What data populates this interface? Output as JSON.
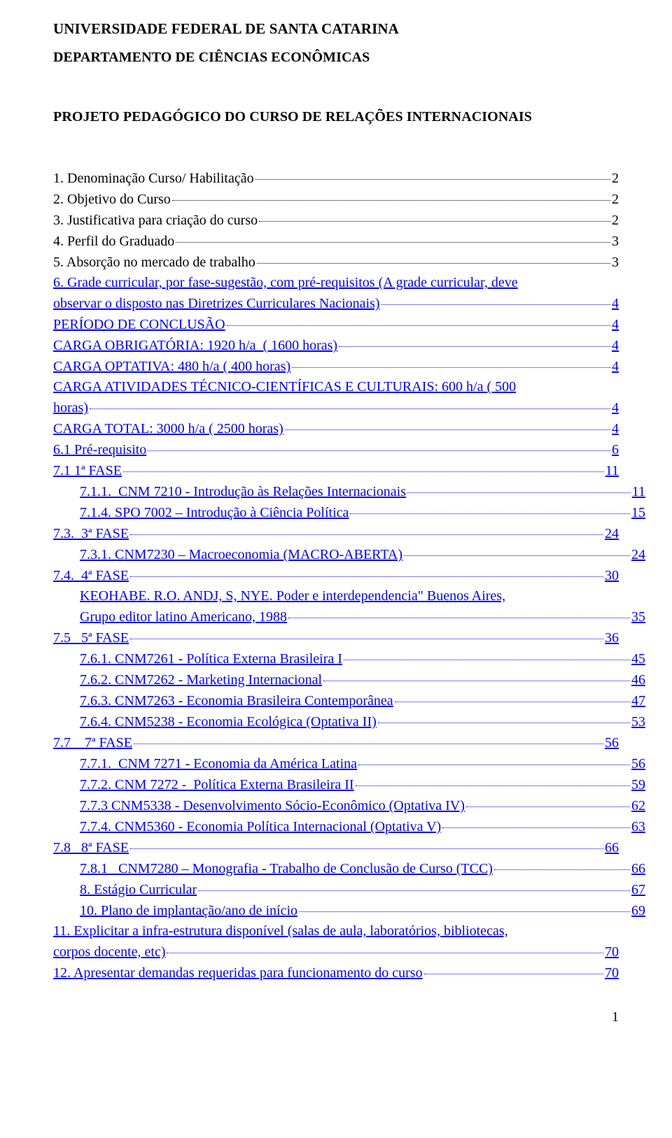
{
  "header": {
    "university": "UNIVERSIDADE FEDERAL DE SANTA CATARINA",
    "department": "DEPARTAMENTO DE CIÊNCIAS ECONÔMICAS",
    "project": "PROJETO PEDAGÓGICO DO CURSO DE RELAÇÕES INTERNACIONAIS"
  },
  "colors": {
    "link": "#0000ff",
    "text": "#000000",
    "background": "#ffffff"
  },
  "typography": {
    "family": "Times New Roman",
    "body_size_pt": 15,
    "heading_weight": "bold"
  },
  "toc": [
    {
      "indent": 0,
      "label": "1. Denominação Curso/ Habilitação",
      "page": "2",
      "style": "plain"
    },
    {
      "indent": 0,
      "label": "2. Objetivo do Curso",
      "page": "2",
      "style": "plain"
    },
    {
      "indent": 0,
      "label": "3. Justificativa para criação do curso",
      "page": "2",
      "style": "plain"
    },
    {
      "indent": 0,
      "label": "4. Perfil do Graduado",
      "page": "3",
      "style": "plain"
    },
    {
      "indent": 0,
      "label": "5. Absorção no mercado de trabalho",
      "page": "3",
      "style": "plain"
    },
    {
      "indent": 0,
      "label_line1": "6. Grade curricular, por fase-sugestão, com pré-requisitos (A grade curricular, deve",
      "label_line2": "observar o disposto nas Diretrizes Curriculares Nacionais)",
      "page": "4",
      "style": "link",
      "multiline": true
    },
    {
      "indent": 0,
      "label": "PERÍODO DE CONCLUSÃO",
      "page": "4",
      "style": "link"
    },
    {
      "indent": 0,
      "label": "CARGA OBRIGATÓRIA: 1920 h/a  ( 1600 horas)",
      "page": "4",
      "style": "link"
    },
    {
      "indent": 0,
      "label": "CARGA OPTATIVA: 480 h/a ( 400 horas)",
      "page": "4",
      "style": "link"
    },
    {
      "indent": 0,
      "label_line1": "CARGA ATIVIDADES TÉCNICO-CIENTÍFICAS E CULTURAIS: 600 h/a ( 500",
      "label_line2": "horas)",
      "page": "4",
      "style": "link",
      "multiline": true
    },
    {
      "indent": 0,
      "label": "CARGA TOTAL: 3000 h/a ( 2500 horas)",
      "page": "4",
      "style": "link"
    },
    {
      "indent": 0,
      "label": "6.1 Pré-requisito",
      "page": "6",
      "style": "link"
    },
    {
      "indent": 0,
      "label": "7.1 1ª FASE",
      "page": "11",
      "style": "link"
    },
    {
      "indent": 1,
      "label": "7.1.1.  CNM 7210 - Introdução às Relações Internacionais",
      "page": "11",
      "style": "link"
    },
    {
      "indent": 1,
      "label": "7.1.4. SPO 7002 – Introdução à Ciência Política",
      "page": "15",
      "style": "link"
    },
    {
      "indent": 0,
      "label": "7.3.  3ª FASE",
      "page": "24",
      "style": "link"
    },
    {
      "indent": 1,
      "label": "7.3.1. CNM7230 – Macroeconomia (MACRO-ABERTA)",
      "page": "24",
      "style": "link"
    },
    {
      "indent": 0,
      "label": "7.4.  4ª FASE",
      "page": "30",
      "style": "link"
    },
    {
      "indent": 1,
      "label_line1": "KEOHABE. R.O.  ANDJ, S, NYE.  Poder e interdependencia\" Buenos Aires,",
      "label_line2": "Grupo editor latino Americano, 1988",
      "page": "35",
      "style": "link",
      "multiline": true
    },
    {
      "indent": 0,
      "label": "7.5   5ª FASE",
      "page": "36",
      "style": "link"
    },
    {
      "indent": 1,
      "label": "7.6.1. CNM7261 - Política Externa Brasileira I",
      "page": "45",
      "style": "link"
    },
    {
      "indent": 1,
      "label": "7.6.2. CNM7262 - Marketing Internacional",
      "page": "46",
      "style": "link"
    },
    {
      "indent": 1,
      "label": "7.6.3. CNM7263 - Economia Brasileira Contemporânea",
      "page": "47",
      "style": "link"
    },
    {
      "indent": 1,
      "label": "7.6.4. CNM5238 - Economia Ecológica (Optativa II)",
      "page": "53",
      "style": "link"
    },
    {
      "indent": 0,
      "label": "7.7    7ª FASE",
      "page": "56",
      "style": "link"
    },
    {
      "indent": 1,
      "label": "7.7.1.  CNM 7271 - Economia da América Latina",
      "page": "56",
      "style": "link"
    },
    {
      "indent": 1,
      "label": "7.7.2. CNM 7272 -  Política Externa Brasileira II",
      "page": "59",
      "style": "link"
    },
    {
      "indent": 1,
      "label": "7.7.3 CNM5338 - Desenvolvimento Sócio-Econômico (Optativa IV)",
      "page": "62",
      "style": "link"
    },
    {
      "indent": 1,
      "label": "7.7.4. CNM5360 - Economia Política Internacional (Optativa V)",
      "page": "63",
      "style": "link"
    },
    {
      "indent": 0,
      "label": "7.8   8ª FASE",
      "page": "66",
      "style": "link"
    },
    {
      "indent": 1,
      "label": "7.8.1   CNM7280 – Monografia - Trabalho de Conclusão de Curso (TCC)",
      "page": "66",
      "style": "link"
    },
    {
      "indent": 1,
      "label": "8. Estágio Curricular",
      "page": "67",
      "style": "link"
    },
    {
      "indent": 1,
      "label": "10. Plano de implantação/ano de início",
      "page": "69",
      "style": "link"
    },
    {
      "indent": 0,
      "label_line1": "11. Explicitar a infra-estrutura disponível (salas de aula, laboratórios, bibliotecas,",
      "label_line2": "corpos docente, etc)",
      "page": "70",
      "style": "link",
      "multiline": true
    },
    {
      "indent": 0,
      "label": "12. Apresentar demandas requeridas para funcionamento do curso",
      "page": "70",
      "style": "link"
    }
  ],
  "page_number": "1"
}
